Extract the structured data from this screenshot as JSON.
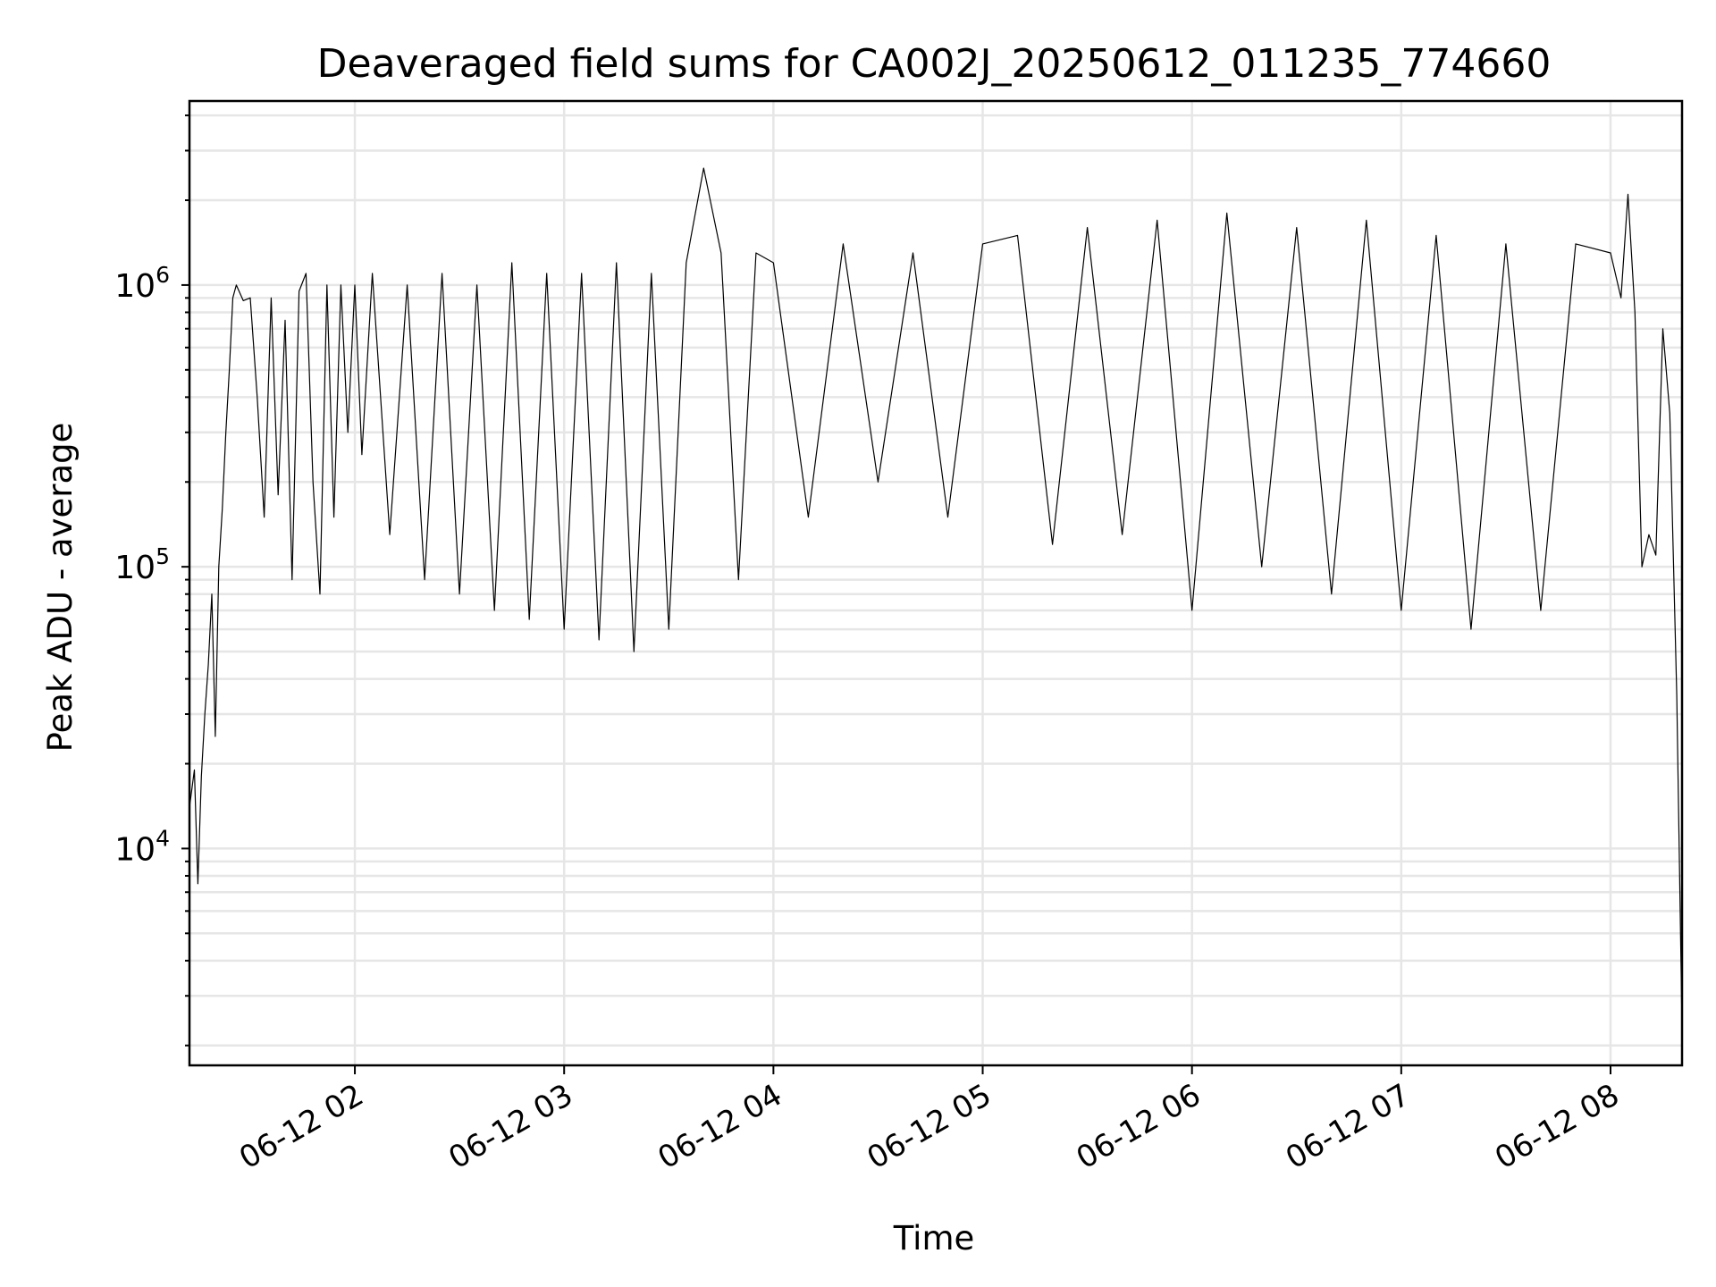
{
  "chart_data": {
    "type": "line",
    "title": "Deaveraged field sums for CA002J_20250612_011235_774660",
    "xlabel": "Time",
    "ylabel": "Peak ADU - average",
    "yscale": "log",
    "ylim": [
      1700,
      4500000
    ],
    "xlim": [
      "2025-06-12 01:12:35",
      "2025-06-12 08:20:30"
    ],
    "x_ticks": [
      {
        "value": "2025-06-12 02:00",
        "label": "06-12 02"
      },
      {
        "value": "2025-06-12 03:00",
        "label": "06-12 03"
      },
      {
        "value": "2025-06-12 04:00",
        "label": "06-12 04"
      },
      {
        "value": "2025-06-12 05:00",
        "label": "06-12 05"
      },
      {
        "value": "2025-06-12 06:00",
        "label": "06-12 06"
      },
      {
        "value": "2025-06-12 07:00",
        "label": "06-12 07"
      },
      {
        "value": "2025-06-12 08:00",
        "label": "06-12 08"
      }
    ],
    "y_ticks": [
      {
        "value": 10000,
        "base": "10",
        "exp": "4"
      },
      {
        "value": 100000,
        "base": "10",
        "exp": "5"
      },
      {
        "value": 1000000,
        "base": "10",
        "exp": "6"
      }
    ],
    "grid": true,
    "series_color": "#000000",
    "series": [
      {
        "x": [
          "2025-06-12 01:12:35",
          "2025-06-12 01:14:00",
          "2025-06-12 01:15:00",
          "2025-06-12 01:16:00",
          "2025-06-12 01:17:00",
          "2025-06-12 01:18:00",
          "2025-06-12 01:19:00",
          "2025-06-12 01:20:00",
          "2025-06-12 01:21:00",
          "2025-06-12 01:22:00",
          "2025-06-12 01:23:00",
          "2025-06-12 01:24:00",
          "2025-06-12 01:25:00",
          "2025-06-12 01:26:00",
          "2025-06-12 01:28:00",
          "2025-06-12 01:30:00",
          "2025-06-12 01:32:00",
          "2025-06-12 01:34:00",
          "2025-06-12 01:36:00",
          "2025-06-12 01:38:00",
          "2025-06-12 01:40:00",
          "2025-06-12 01:42:00",
          "2025-06-12 01:44:00",
          "2025-06-12 01:46:00",
          "2025-06-12 01:48:00",
          "2025-06-12 01:50:00",
          "2025-06-12 01:52:00",
          "2025-06-12 01:54:00",
          "2025-06-12 01:56:00",
          "2025-06-12 01:58:00",
          "2025-06-12 02:00:00",
          "2025-06-12 02:02:00",
          "2025-06-12 02:05:00",
          "2025-06-12 02:10:00",
          "2025-06-12 02:15:00",
          "2025-06-12 02:20:00",
          "2025-06-12 02:25:00",
          "2025-06-12 02:30:00",
          "2025-06-12 02:35:00",
          "2025-06-12 02:40:00",
          "2025-06-12 02:45:00",
          "2025-06-12 02:50:00",
          "2025-06-12 02:55:00",
          "2025-06-12 03:00:00",
          "2025-06-12 03:05:00",
          "2025-06-12 03:10:00",
          "2025-06-12 03:15:00",
          "2025-06-12 03:20:00",
          "2025-06-12 03:25:00",
          "2025-06-12 03:30:00",
          "2025-06-12 03:35:00",
          "2025-06-12 03:40:00",
          "2025-06-12 03:45:00",
          "2025-06-12 03:50:00",
          "2025-06-12 03:55:00",
          "2025-06-12 04:00:00",
          "2025-06-12 04:10:00",
          "2025-06-12 04:20:00",
          "2025-06-12 04:30:00",
          "2025-06-12 04:40:00",
          "2025-06-12 04:50:00",
          "2025-06-12 05:00:00",
          "2025-06-12 05:10:00",
          "2025-06-12 05:20:00",
          "2025-06-12 05:30:00",
          "2025-06-12 05:40:00",
          "2025-06-12 05:50:00",
          "2025-06-12 06:00:00",
          "2025-06-12 06:10:00",
          "2025-06-12 06:20:00",
          "2025-06-12 06:30:00",
          "2025-06-12 06:40:00",
          "2025-06-12 06:50:00",
          "2025-06-12 07:00:00",
          "2025-06-12 07:10:00",
          "2025-06-12 07:20:00",
          "2025-06-12 07:30:00",
          "2025-06-12 07:40:00",
          "2025-06-12 07:50:00",
          "2025-06-12 08:00:00",
          "2025-06-12 08:03:00",
          "2025-06-12 08:05:00",
          "2025-06-12 08:07:00",
          "2025-06-12 08:09:00",
          "2025-06-12 08:11:00",
          "2025-06-12 08:13:00",
          "2025-06-12 08:15:00",
          "2025-06-12 08:17:00",
          "2025-06-12 08:19:00",
          "2025-06-12 08:20:30"
        ],
        "y": [
          14000,
          19000,
          7500,
          18000,
          30000,
          45000,
          80000,
          25000,
          100000,
          160000,
          300000,
          500000,
          900000,
          1000000,
          880000,
          900000,
          400000,
          150000,
          900000,
          180000,
          750000,
          90000,
          950000,
          1100000,
          200000,
          80000,
          1000000,
          150000,
          1000000,
          300000,
          1000000,
          250000,
          1100000,
          130000,
          1000000,
          90000,
          1100000,
          80000,
          1000000,
          70000,
          1200000,
          65000,
          1100000,
          60000,
          1100000,
          55000,
          1200000,
          50000,
          1100000,
          60000,
          1200000,
          2600000,
          1300000,
          90000,
          1300000,
          1200000,
          150000,
          1400000,
          200000,
          1300000,
          150000,
          1400000,
          1500000,
          120000,
          1600000,
          130000,
          1700000,
          70000,
          1800000,
          100000,
          1600000,
          80000,
          1700000,
          70000,
          1500000,
          60000,
          1400000,
          70000,
          1400000,
          1300000,
          900000,
          2100000,
          800000,
          100000,
          130000,
          110000,
          700000,
          350000,
          35000,
          2300
        ]
      }
    ]
  }
}
